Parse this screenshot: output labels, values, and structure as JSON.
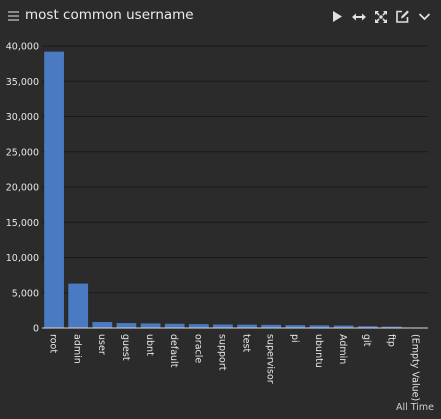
{
  "header": {
    "title": "most common username",
    "icons": [
      "menu-icon",
      "play-icon",
      "horizontal-arrows-icon",
      "expand-icon",
      "edit-icon",
      "chevron-down-icon"
    ]
  },
  "footer": {
    "time_range": "All Time"
  },
  "colors": {
    "bar": "#4a7ac1",
    "background": "#2b2b2b",
    "gridline": "#1a1a1a",
    "text": "#e6e6e6"
  },
  "chart_data": {
    "type": "bar",
    "title": "most common username",
    "categories": [
      "root",
      "admin",
      "user",
      "guest",
      "ubnt",
      "default",
      "oracle",
      "support",
      "test",
      "supervisor",
      "pi",
      "ubuntu",
      "Admin",
      "git",
      "ftp",
      "(Empty Value)"
    ],
    "values": [
      39200,
      6300,
      850,
      700,
      650,
      600,
      550,
      500,
      480,
      450,
      400,
      380,
      350,
      250,
      200,
      0
    ],
    "ylim": [
      0,
      40000
    ],
    "yticks": [
      0,
      5000,
      10000,
      15000,
      20000,
      25000,
      30000,
      35000,
      40000
    ],
    "ytick_labels": [
      "0",
      "5,000",
      "10,000",
      "15,000",
      "20,000",
      "25,000",
      "30,000",
      "35,000",
      "40,000"
    ],
    "grid": true,
    "legend": "none"
  }
}
